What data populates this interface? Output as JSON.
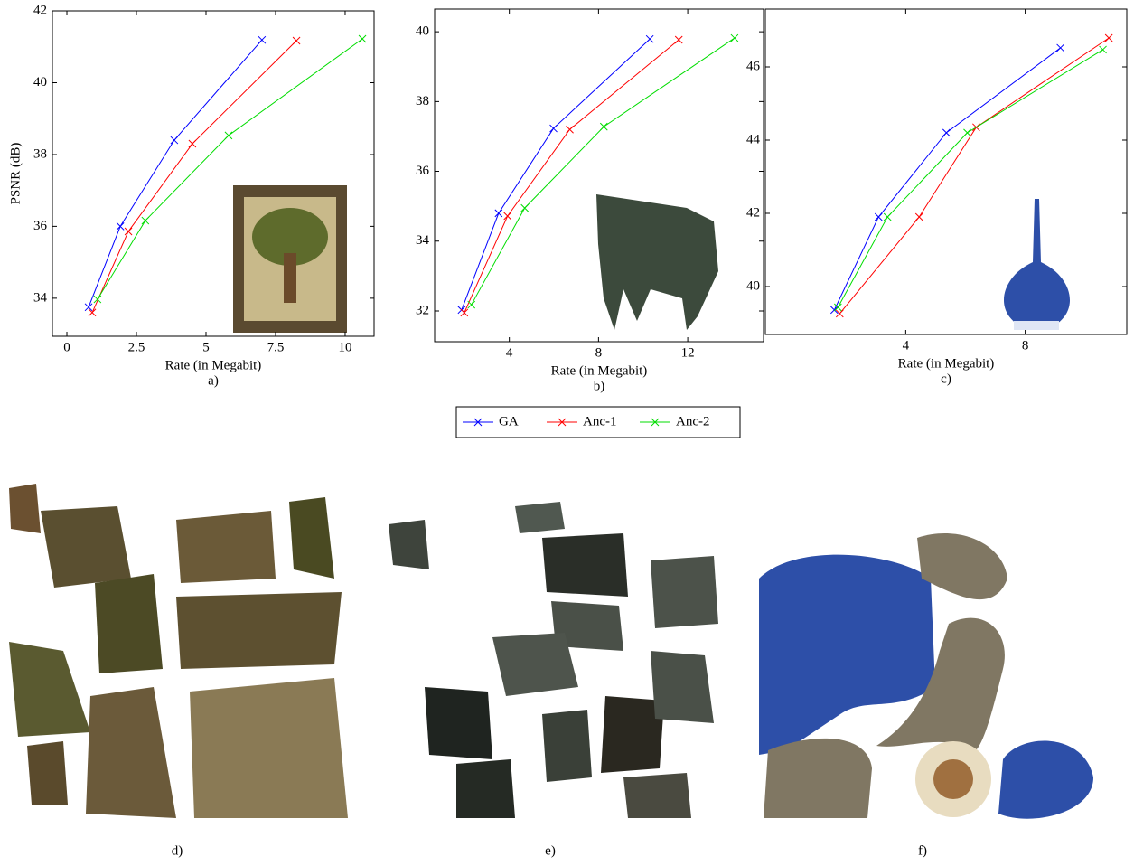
{
  "chart_data": [
    {
      "type": "line",
      "caption": "a)",
      "x_label": "Rate (in Megabit)",
      "y_label": "PSNR (dB)",
      "xlim": [
        -0.52,
        11.04
      ],
      "ylim": [
        32.94,
        42
      ],
      "xticks": [
        0,
        2.5,
        5,
        7.5,
        10
      ],
      "yticks": [
        34,
        36,
        38,
        40,
        42
      ],
      "series": [
        {
          "color": "#0000ff",
          "x": [
            0.78,
            1.92,
            3.86,
            7.01
          ],
          "values": [
            33.75,
            36.0,
            38.4,
            41.19
          ]
        },
        {
          "color": "#ff0000",
          "x": [
            0.91,
            2.21,
            4.51,
            8.25
          ],
          "values": [
            33.6,
            35.86,
            38.3,
            41.17
          ]
        },
        {
          "color": "#00dd00",
          "x": [
            1.1,
            2.82,
            5.81,
            10.62
          ],
          "values": [
            33.97,
            36.16,
            38.53,
            41.22
          ]
        }
      ]
    },
    {
      "type": "line",
      "caption": "b)",
      "x_label": "Rate (in Megabit)",
      "xlim": [
        0.65,
        15.4
      ],
      "ylim": [
        31.12,
        40.65
      ],
      "xticks": [
        4,
        8,
        12
      ],
      "yticks": [
        32,
        34,
        36,
        38,
        40
      ],
      "series": [
        {
          "color": "#0000ff",
          "x": [
            1.86,
            3.52,
            5.98,
            10.3
          ],
          "values": [
            32.03,
            34.8,
            37.23,
            39.79
          ]
        },
        {
          "color": "#ff0000",
          "x": [
            1.98,
            3.92,
            6.71,
            11.6
          ],
          "values": [
            31.95,
            34.72,
            37.2,
            39.77
          ]
        },
        {
          "color": "#00dd00",
          "x": [
            2.3,
            4.69,
            8.24,
            14.1
          ],
          "values": [
            32.18,
            34.95,
            37.28,
            39.82
          ]
        }
      ]
    },
    {
      "type": "line",
      "caption": "c)",
      "x_label": "Rate (in Megabit)",
      "xlim": [
        -0.7,
        11.4
      ],
      "ylim": [
        38.69,
        47.58
      ],
      "xticks": [
        4,
        8
      ],
      "yticks": [
        40,
        42,
        44,
        46
      ],
      "series": [
        {
          "color": "#0000ff",
          "x": [
            1.61,
            3.09,
            5.36,
            9.18
          ],
          "values": [
            39.36,
            41.9,
            44.2,
            46.52
          ]
        },
        {
          "color": "#ff0000",
          "x": [
            1.79,
            4.45,
            6.36,
            10.8
          ],
          "values": [
            39.26,
            41.9,
            44.35,
            46.79
          ]
        },
        {
          "color": "#00dd00",
          "x": [
            1.73,
            3.39,
            6.06,
            10.6
          ],
          "values": [
            39.43,
            41.9,
            44.2,
            46.47
          ]
        }
      ]
    }
  ],
  "legend": [
    "GA",
    "Anc-1",
    "Anc-2"
  ],
  "panels": [
    "d)",
    "e)",
    "f)"
  ]
}
